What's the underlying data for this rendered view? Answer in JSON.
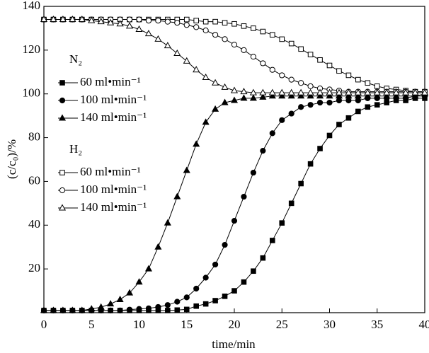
{
  "chart_data": {
    "type": "line",
    "x_label": "time/min",
    "y_label": "(c/c₀)/%",
    "xlim": [
      0,
      40
    ],
    "xticks": [
      0,
      5,
      10,
      15,
      20,
      25,
      30,
      35,
      40
    ],
    "ylim": [
      0,
      140
    ],
    "yticks": [
      20,
      40,
      60,
      80,
      100,
      120,
      140
    ],
    "x": [
      0,
      1,
      2,
      3,
      4,
      5,
      6,
      7,
      8,
      9,
      10,
      11,
      12,
      13,
      14,
      15,
      16,
      17,
      18,
      19,
      20,
      21,
      22,
      23,
      24,
      25,
      26,
      27,
      28,
      29,
      30,
      31,
      32,
      33,
      34,
      35,
      36,
      37,
      38,
      39,
      40
    ],
    "series": [
      {
        "group": "N₂",
        "name": "60  ml•min⁻¹",
        "color": "#000000",
        "marker": "square",
        "filled": true,
        "values": [
          1,
          1,
          1,
          1,
          1,
          1,
          1,
          1,
          1,
          1,
          1,
          1,
          1,
          1,
          1.2,
          1.5,
          3,
          4,
          5.5,
          7.5,
          10,
          14,
          19,
          25,
          33,
          41,
          50,
          59,
          68,
          75,
          81,
          86,
          89,
          92,
          94,
          95,
          96,
          97,
          97,
          98,
          98
        ]
      },
      {
        "group": "N₂",
        "name": "100  ml•min⁻¹",
        "color": "#000000",
        "marker": "circle",
        "filled": true,
        "values": [
          1,
          1,
          1,
          1,
          1,
          1,
          1,
          1,
          1,
          1.4,
          1.7,
          2,
          2.6,
          3.5,
          5,
          7,
          11,
          16,
          22,
          31,
          42,
          53,
          64,
          74,
          82,
          88,
          91,
          94,
          95,
          96,
          96,
          97,
          97,
          97,
          98,
          98,
          98,
          98,
          98,
          99,
          99
        ]
      },
      {
        "group": "N₂",
        "name": "140  ml•min⁻¹",
        "color": "#000000",
        "marker": "triangle",
        "filled": true,
        "values": [
          1,
          1,
          1,
          1,
          1,
          1.7,
          2.5,
          4,
          6,
          9,
          14,
          20,
          30,
          41,
          53,
          65,
          77,
          87,
          93,
          96,
          97,
          98,
          98,
          98.5,
          99,
          99,
          99,
          99,
          99,
          99,
          99,
          99,
          99,
          99,
          99,
          99,
          99,
          99,
          99,
          99,
          100
        ]
      },
      {
        "group": "H₂",
        "name": "60 ml•min⁻¹",
        "color": "#000000",
        "marker": "square",
        "filled": false,
        "values": [
          134,
          134,
          134,
          134,
          134,
          134,
          134,
          134,
          134,
          134,
          134,
          134,
          134,
          134,
          134,
          134,
          133.5,
          133,
          133,
          132.5,
          132,
          131,
          130,
          128.5,
          127,
          125,
          123,
          120.5,
          118,
          115.5,
          113,
          110.5,
          108.5,
          106.5,
          105,
          103.5,
          102.5,
          102,
          101.5,
          101,
          101
        ]
      },
      {
        "group": "H₂",
        "name": "100 ml•min⁻¹",
        "color": "#000000",
        "marker": "circle",
        "filled": false,
        "values": [
          134,
          134,
          134,
          134,
          134,
          134,
          134,
          134,
          134,
          134,
          134,
          133.5,
          133.5,
          133,
          132.5,
          131.5,
          130.5,
          129,
          127,
          125,
          122.5,
          120,
          117,
          114,
          111,
          108.5,
          106.5,
          105,
          103.5,
          102.5,
          102,
          101.5,
          101,
          101,
          101,
          101,
          101,
          101,
          101,
          101,
          101
        ]
      },
      {
        "group": "H₂",
        "name": "140 ml•min⁻¹",
        "color": "#000000",
        "marker": "triangle",
        "filled": false,
        "values": [
          134,
          134,
          134,
          134,
          134,
          133.5,
          133,
          132.5,
          132,
          131,
          129.5,
          127.5,
          125,
          122,
          118.5,
          115,
          111,
          107.5,
          105,
          103,
          101.5,
          101,
          100.5,
          100.5,
          100.5,
          100.5,
          100.5,
          100.5,
          100.5,
          100.5,
          100.5,
          100.5,
          100.5,
          100.5,
          100.5,
          100.5,
          100.5,
          100.5,
          100.5,
          100.5,
          100.5
        ]
      }
    ]
  }
}
